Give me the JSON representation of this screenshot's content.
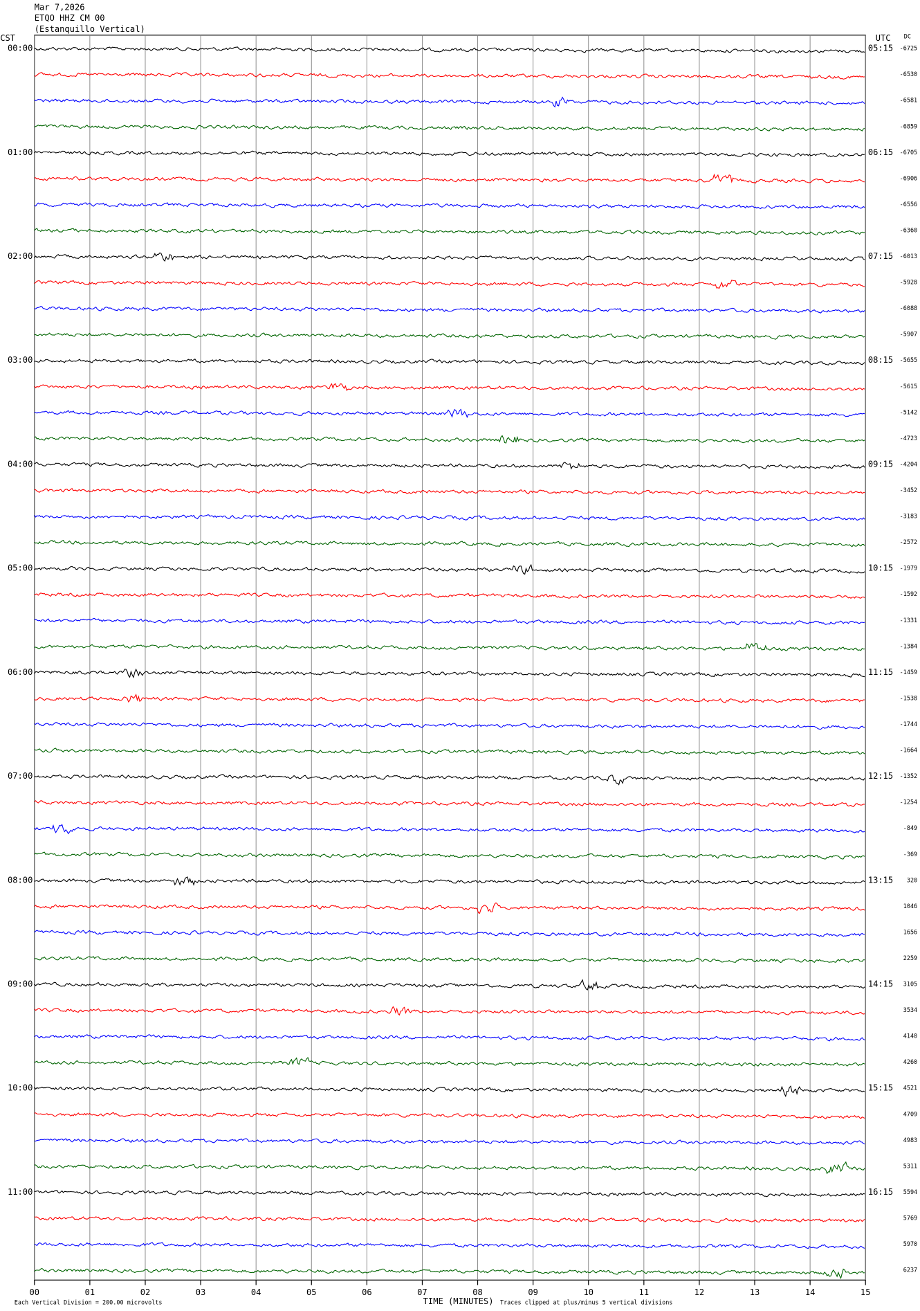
{
  "chart_data": {
    "type": "helicorder",
    "title": [
      "Mar 7,2026",
      "ETQO HHZ CM 00",
      "(Estanquillo Vertical)"
    ],
    "left_axis_label": "CST",
    "right_axis_label": "UTC",
    "dc_label": "DC",
    "x_label": "TIME (MINUTES)",
    "footer_left": "Each Vertical Division =  200.00 microvolts",
    "footer_right": "Traces clipped at plus/minus 5 vertical divisions",
    "xlim": [
      0,
      15
    ],
    "xticks": [
      {
        "value": 0,
        "label": "00"
      },
      {
        "value": 1,
        "label": "01"
      },
      {
        "value": 2,
        "label": "02"
      },
      {
        "value": 3,
        "label": "03"
      },
      {
        "value": 4,
        "label": "04"
      },
      {
        "value": 5,
        "label": "05"
      },
      {
        "value": 6,
        "label": "06"
      },
      {
        "value": 7,
        "label": "07"
      },
      {
        "value": 8,
        "label": "08"
      },
      {
        "value": 9,
        "label": "09"
      },
      {
        "value": 10,
        "label": "10"
      },
      {
        "value": 11,
        "label": "11"
      },
      {
        "value": 12,
        "label": "12"
      },
      {
        "value": 13,
        "label": "13"
      },
      {
        "value": 14,
        "label": "14"
      },
      {
        "value": 15,
        "label": "15"
      }
    ],
    "cst_labels": [
      "00:00",
      "01:00",
      "02:00",
      "03:00",
      "04:00",
      "05:00",
      "06:00",
      "07:00",
      "08:00",
      "09:00",
      "10:00",
      "11:00"
    ],
    "utc_labels": [
      "05:15",
      "06:15",
      "07:15",
      "08:15",
      "09:15",
      "10:15",
      "11:15",
      "12:15",
      "13:15",
      "14:15",
      "15:15",
      "16:15"
    ],
    "dc_values": [
      -6725,
      -6530,
      -6581,
      -6859,
      -6705,
      -6906,
      -6556,
      -6360,
      -6013,
      -5928,
      -6088,
      -5907,
      -5655,
      -5615,
      -5142,
      -4723,
      -4204,
      -3452,
      -3183,
      -2572,
      -1979,
      -1592,
      -1331,
      -1384,
      -1459,
      -1538,
      -1744,
      -1664,
      -1352,
      -1254,
      -849,
      -369,
      320,
      1046,
      1656,
      2259,
      3105,
      3534,
      4140,
      4260,
      4521,
      4709,
      4983,
      5311,
      5594,
      5769,
      5970,
      6237
    ],
    "colors": [
      "#000000",
      "#ff0000",
      "#0000ff",
      "#006400"
    ]
  }
}
